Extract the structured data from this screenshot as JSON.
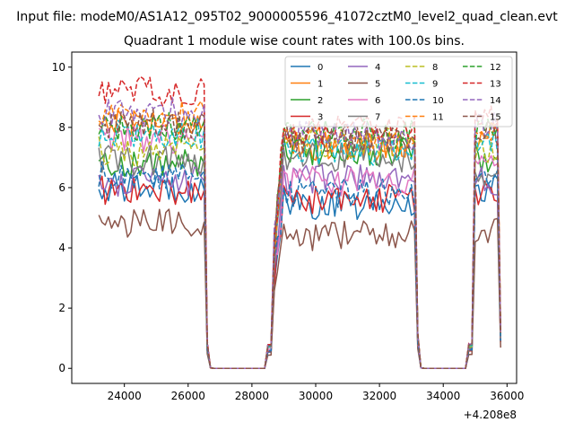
{
  "chart_data": {
    "type": "line",
    "title": "Quadrant 1 module wise count rates with 100.0s bins.",
    "suptitle": "Input file: modeM0/AS1A12_095T02_9000005596_41072cztM0_level2_quad_clean.evt",
    "xlabel": "",
    "ylabel": "",
    "x_offset_label": "+4.208e8",
    "xlim": [
      22350,
      36300
    ],
    "ylim": [
      -0.5,
      10.5
    ],
    "xticks": [
      24000,
      26000,
      28000,
      30000,
      32000,
      34000,
      36000
    ],
    "xtick_labels": [
      "24000",
      "26000",
      "28000",
      "30000",
      "32000",
      "34000",
      "36000"
    ],
    "yticks": [
      0,
      2,
      4,
      6,
      8,
      10
    ],
    "ytick_labels": [
      "0",
      "2",
      "4",
      "6",
      "8",
      "10"
    ],
    "grid": false,
    "legend_position": "top-right",
    "legend_columns": 4,
    "bin_seconds": 100,
    "observing_windows": [
      {
        "start": 23200,
        "end": 26500
      },
      {
        "start": 28700,
        "end": 33100
      },
      {
        "start": 35000,
        "end": 35800
      }
    ],
    "gap_level": 0,
    "series": [
      {
        "name": "0",
        "color": "#1f77b4",
        "dash": "solid",
        "rate_windows": [
          6.0,
          5.4,
          6.0
        ]
      },
      {
        "name": "1",
        "color": "#ff7f0e",
        "dash": "solid",
        "rate_windows": [
          8.2,
          7.4,
          7.8
        ]
      },
      {
        "name": "2",
        "color": "#2ca02c",
        "dash": "solid",
        "rate_windows": [
          6.8,
          7.2,
          7.0
        ]
      },
      {
        "name": "3",
        "color": "#d62728",
        "dash": "solid",
        "rate_windows": [
          5.9,
          5.6,
          5.8
        ]
      },
      {
        "name": "4",
        "color": "#9467bd",
        "dash": "solid",
        "rate_windows": [
          6.2,
          6.3,
          6.2
        ]
      },
      {
        "name": "5",
        "color": "#8c564b",
        "dash": "solid",
        "rate_windows": [
          4.8,
          4.4,
          4.6
        ]
      },
      {
        "name": "6",
        "color": "#e377c2",
        "dash": "solid",
        "rate_windows": [
          7.6,
          6.2,
          6.6
        ]
      },
      {
        "name": "7",
        "color": "#7f7f7f",
        "dash": "solid",
        "rate_windows": [
          6.9,
          7.0,
          6.5
        ]
      },
      {
        "name": "8",
        "color": "#bcbd22",
        "dash": "dashed",
        "rate_windows": [
          7.2,
          7.5,
          7.2
        ]
      },
      {
        "name": "9",
        "color": "#17becf",
        "dash": "dashed",
        "rate_windows": [
          7.8,
          7.2,
          7.5
        ]
      },
      {
        "name": "10",
        "color": "#1f77b4",
        "dash": "dashed",
        "rate_windows": [
          6.4,
          5.8,
          6.1
        ]
      },
      {
        "name": "11",
        "color": "#ff7f0e",
        "dash": "dashed",
        "rate_windows": [
          8.4,
          7.6,
          8.0
        ]
      },
      {
        "name": "12",
        "color": "#2ca02c",
        "dash": "dashed",
        "rate_windows": [
          8.0,
          7.8,
          7.9
        ]
      },
      {
        "name": "13",
        "color": "#d62728",
        "dash": "dashed",
        "rate_windows": [
          9.2,
          7.9,
          8.3
        ]
      },
      {
        "name": "14",
        "color": "#9467bd",
        "dash": "dashed",
        "rate_windows": [
          8.5,
          7.7,
          8.1
        ]
      },
      {
        "name": "15",
        "color": "#8c564b",
        "dash": "dashed",
        "rate_windows": [
          8.1,
          7.6,
          7.8
        ]
      }
    ]
  }
}
